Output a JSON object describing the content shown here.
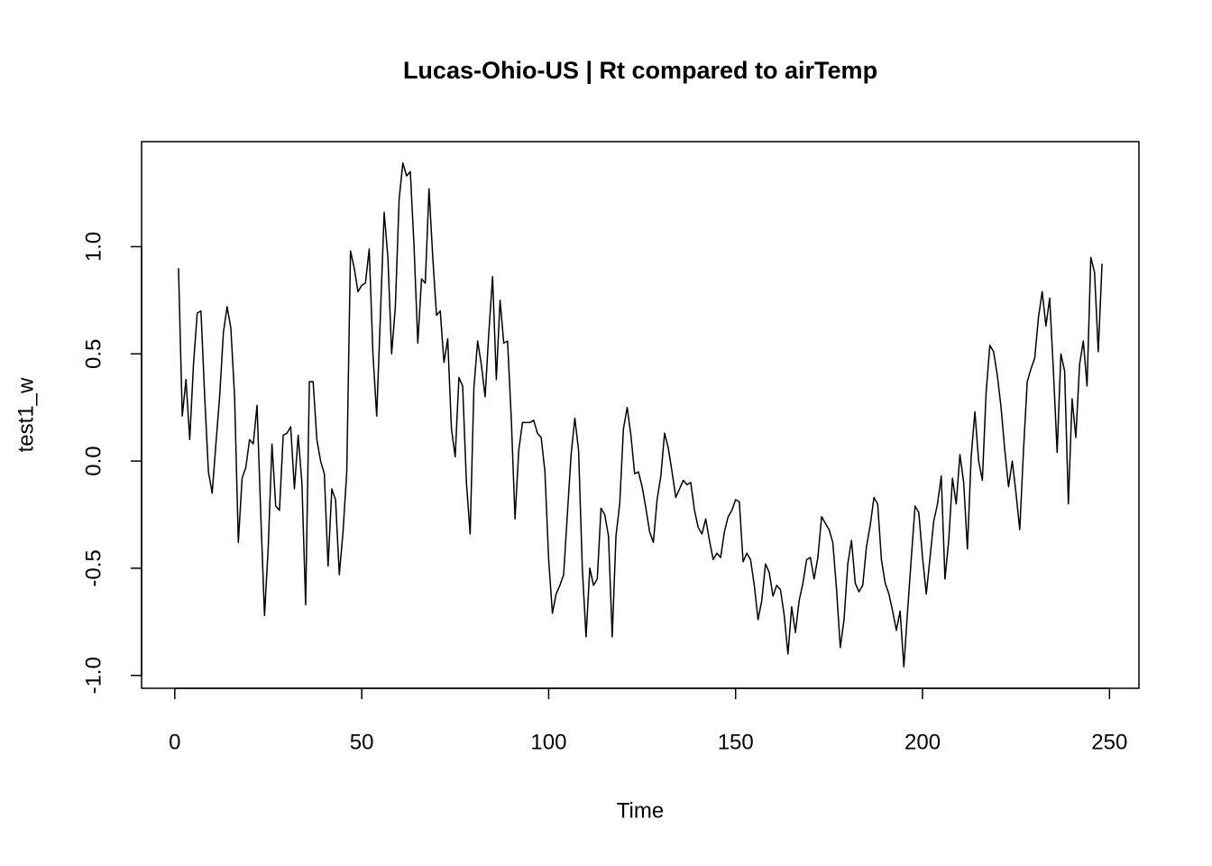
{
  "chart_data": {
    "type": "line",
    "title": "Lucas-Ohio-US | Rt compared to airTemp",
    "x_label": "Time",
    "y_label": "test1_w",
    "xlim": [
      -8.88,
      257.88
    ],
    "ylim": [
      -1.06,
      1.49
    ],
    "xticks": [
      0,
      50,
      100,
      150,
      200,
      250
    ],
    "yticks": [
      {
        "value": -1,
        "label": "-1.0"
      },
      {
        "value": -0.5,
        "label": "-0.5"
      },
      {
        "value": 0,
        "label": "0.0"
      },
      {
        "value": 0.5,
        "label": "0.5"
      },
      {
        "value": 1,
        "label": "1.0"
      }
    ],
    "x": [
      1,
      2,
      3,
      4,
      5,
      6,
      7,
      8,
      9,
      10,
      11,
      12,
      13,
      14,
      15,
      16,
      17,
      18,
      19,
      20,
      21,
      22,
      23,
      24,
      25,
      26,
      27,
      28,
      29,
      30,
      31,
      32,
      33,
      34,
      35,
      36,
      37,
      38,
      39,
      40,
      41,
      42,
      43,
      44,
      45,
      46,
      47,
      48,
      49,
      50,
      51,
      52,
      53,
      54,
      55,
      56,
      57,
      58,
      59,
      60,
      61,
      62,
      63,
      64,
      65,
      66,
      67,
      68,
      69,
      70,
      71,
      72,
      73,
      74,
      75,
      76,
      77,
      78,
      79,
      80,
      81,
      82,
      83,
      84,
      85,
      86,
      87,
      88,
      89,
      90,
      91,
      92,
      93,
      94,
      95,
      96,
      97,
      98,
      99,
      100,
      101,
      102,
      103,
      104,
      105,
      106,
      107,
      108,
      109,
      110,
      111,
      112,
      113,
      114,
      115,
      116,
      117,
      118,
      119,
      120,
      121,
      122,
      123,
      124,
      125,
      126,
      127,
      128,
      129,
      130,
      131,
      132,
      133,
      134,
      135,
      136,
      137,
      138,
      139,
      140,
      141,
      142,
      143,
      144,
      145,
      146,
      147,
      148,
      149,
      150,
      151,
      152,
      153,
      154,
      155,
      156,
      157,
      158,
      159,
      160,
      161,
      162,
      163,
      164,
      165,
      166,
      167,
      168,
      169,
      170,
      171,
      172,
      173,
      174,
      175,
      176,
      177,
      178,
      179,
      180,
      181,
      182,
      183,
      184,
      185,
      186,
      187,
      188,
      189,
      190,
      191,
      192,
      193,
      194,
      195,
      196,
      197,
      198,
      199,
      200,
      201,
      202,
      203,
      204,
      205,
      206,
      207,
      208,
      209,
      210,
      211,
      212,
      213,
      214,
      215,
      216,
      217,
      218,
      219,
      220,
      221,
      222,
      223,
      224,
      225,
      226,
      227,
      228,
      229,
      230,
      231,
      232,
      233,
      234,
      235,
      236,
      237,
      238,
      239,
      240,
      241,
      242,
      243,
      244,
      245,
      246,
      247,
      248
    ],
    "series": [
      {
        "name": "test1_w",
        "color": "#000000",
        "values": [
          0.9,
          0.21,
          0.38,
          0.1,
          0.45,
          0.69,
          0.7,
          0.3,
          -0.05,
          -0.15,
          0.08,
          0.3,
          0.6,
          0.72,
          0.62,
          0.3,
          -0.38,
          -0.08,
          -0.03,
          0.1,
          0.08,
          0.26,
          -0.25,
          -0.72,
          -0.4,
          0.08,
          -0.21,
          -0.23,
          0.12,
          0.13,
          0.16,
          -0.13,
          0.12,
          -0.1,
          -0.67,
          0.37,
          0.37,
          0.1,
          0.0,
          -0.06,
          -0.49,
          -0.13,
          -0.18,
          -0.53,
          -0.33,
          -0.05,
          0.98,
          0.9,
          0.79,
          0.82,
          0.83,
          0.99,
          0.5,
          0.21,
          0.68,
          1.16,
          0.95,
          0.5,
          0.72,
          1.22,
          1.39,
          1.33,
          1.35,
          1.0,
          0.55,
          0.85,
          0.83,
          1.27,
          0.95,
          0.68,
          0.7,
          0.46,
          0.57,
          0.15,
          0.02,
          0.39,
          0.35,
          -0.1,
          -0.34,
          0.34,
          0.56,
          0.45,
          0.3,
          0.6,
          0.86,
          0.38,
          0.75,
          0.55,
          0.56,
          0.2,
          -0.27,
          0.05,
          0.18,
          0.18,
          0.18,
          0.19,
          0.13,
          0.11,
          -0.05,
          -0.46,
          -0.71,
          -0.62,
          -0.58,
          -0.53,
          -0.25,
          0.03,
          0.2,
          0.05,
          -0.5,
          -0.82,
          -0.5,
          -0.58,
          -0.55,
          -0.22,
          -0.25,
          -0.35,
          -0.82,
          -0.35,
          -0.2,
          0.15,
          0.25,
          0.12,
          -0.06,
          -0.05,
          -0.12,
          -0.22,
          -0.33,
          -0.38,
          -0.18,
          -0.07,
          0.13,
          0.06,
          -0.05,
          -0.17,
          -0.13,
          -0.09,
          -0.11,
          -0.1,
          -0.23,
          -0.31,
          -0.34,
          -0.27,
          -0.37,
          -0.46,
          -0.43,
          -0.45,
          -0.33,
          -0.26,
          -0.23,
          -0.18,
          -0.19,
          -0.47,
          -0.43,
          -0.46,
          -0.58,
          -0.74,
          -0.65,
          -0.48,
          -0.52,
          -0.63,
          -0.58,
          -0.6,
          -0.72,
          -0.9,
          -0.68,
          -0.8,
          -0.65,
          -0.57,
          -0.46,
          -0.45,
          -0.55,
          -0.45,
          -0.26,
          -0.29,
          -0.32,
          -0.38,
          -0.6,
          -0.87,
          -0.74,
          -0.48,
          -0.37,
          -0.57,
          -0.61,
          -0.58,
          -0.4,
          -0.3,
          -0.17,
          -0.2,
          -0.46,
          -0.57,
          -0.62,
          -0.7,
          -0.79,
          -0.7,
          -0.96,
          -0.7,
          -0.45,
          -0.21,
          -0.24,
          -0.45,
          -0.62,
          -0.45,
          -0.28,
          -0.2,
          -0.07,
          -0.55,
          -0.37,
          -0.08,
          -0.2,
          0.03,
          -0.1,
          -0.41,
          0.02,
          0.23,
          0.0,
          -0.09,
          0.32,
          0.54,
          0.51,
          0.4,
          0.25,
          0.05,
          -0.12,
          0.0,
          -0.15,
          -0.32,
          0.05,
          0.37,
          0.43,
          0.48,
          0.67,
          0.79,
          0.63,
          0.76,
          0.42,
          0.04,
          0.5,
          0.42,
          -0.2,
          0.29,
          0.11,
          0.45,
          0.56,
          0.35,
          0.95,
          0.88,
          0.51,
          0.92
        ]
      }
    ]
  }
}
